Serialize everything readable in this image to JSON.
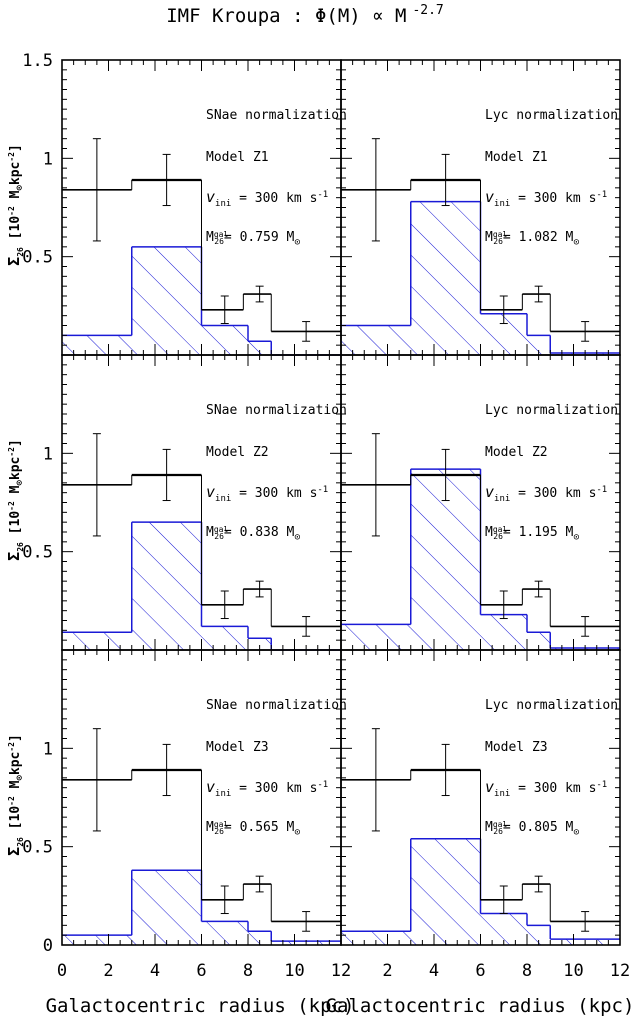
{
  "figure": {
    "title": "IMF Kroupa : Φ(M) ∝ M",
    "title_exp": "-2.7",
    "xlabel": "Galactocentric radius (kpc)",
    "ylabel_main": "Σ",
    "ylabel_sub": "26",
    "ylabel_units": "[10",
    "ylabel_units_exp": "-2",
    "ylabel_units_rest": "M",
    "ylabel_units_sun": "⊙",
    "ylabel_units_tail": "kpc",
    "ylabel_units_tail_exp": "-2",
    "ylabel_units_close": "]",
    "x_ticks": [
      "0",
      "2",
      "4",
      "6",
      "8",
      "10",
      "12"
    ],
    "y_ticks_top": [
      "1.5",
      "1",
      "0.5"
    ],
    "y_ticks_mid": [
      "1",
      "0.5"
    ],
    "y_ticks_bottom": [
      "1",
      "0.5",
      "0"
    ],
    "colors": {
      "model": "#1a1ad6",
      "observed": "#000000"
    }
  },
  "chart_data": [
    {
      "type": "bar",
      "panel": "top-left",
      "normalization": "SNae normalization",
      "model": "Model Z1",
      "vini_label": "v",
      "vini_sub": "ini",
      "vini_value": "= 300 km s",
      "vini_exp": "-1",
      "mgal_label": "M",
      "mgal_sup": "gal",
      "mgal_sub": "26",
      "mgal_value": "= 0.759 M",
      "mgal_sun": "⊙",
      "xlim": [
        0,
        12
      ],
      "ylim": [
        0,
        1.5
      ],
      "observed_bins": [
        [
          0,
          3,
          0.84
        ],
        [
          3,
          6,
          0.89
        ],
        [
          6,
          7.8,
          0.23
        ],
        [
          7.8,
          9,
          0.31
        ],
        [
          9,
          12,
          0.12
        ]
      ],
      "observed_err": [
        [
          1.5,
          0.84,
          0.26
        ],
        [
          4.5,
          0.89,
          0.13
        ],
        [
          7,
          0.23,
          0.07
        ],
        [
          8.5,
          0.31,
          0.04
        ],
        [
          10.5,
          0.12,
          0.05
        ]
      ],
      "model_bins": [
        [
          0,
          3,
          0.1
        ],
        [
          3,
          6,
          0.55
        ],
        [
          6,
          8,
          0.15
        ],
        [
          8,
          9,
          0.07
        ],
        [
          9,
          12,
          0.0
        ]
      ]
    },
    {
      "type": "bar",
      "panel": "top-right",
      "normalization": "Lyc normalization",
      "model": "Model Z1",
      "vini_label": "v",
      "vini_sub": "ini",
      "vini_value": "= 300 km s",
      "vini_exp": "-1",
      "mgal_label": "M",
      "mgal_sup": "gal",
      "mgal_sub": "26",
      "mgal_value": "= 1.082 M",
      "mgal_sun": "⊙",
      "xlim": [
        0,
        12
      ],
      "ylim": [
        0,
        1.5
      ],
      "observed_bins": [
        [
          0,
          3,
          0.84
        ],
        [
          3,
          6,
          0.89
        ],
        [
          6,
          7.8,
          0.23
        ],
        [
          7.8,
          9,
          0.31
        ],
        [
          9,
          12,
          0.12
        ]
      ],
      "observed_err": [
        [
          1.5,
          0.84,
          0.26
        ],
        [
          4.5,
          0.89,
          0.13
        ],
        [
          7,
          0.23,
          0.07
        ],
        [
          8.5,
          0.31,
          0.04
        ],
        [
          10.5,
          0.12,
          0.05
        ]
      ],
      "model_bins": [
        [
          0,
          3,
          0.15
        ],
        [
          3,
          6,
          0.78
        ],
        [
          6,
          8,
          0.21
        ],
        [
          8,
          9,
          0.1
        ],
        [
          9,
          12,
          0.01
        ]
      ]
    },
    {
      "type": "bar",
      "panel": "middle-left",
      "normalization": "SNae normalization",
      "model": "Model Z2",
      "vini_label": "v",
      "vini_sub": "ini",
      "vini_value": "= 300 km s",
      "vini_exp": "-1",
      "mgal_label": "M",
      "mgal_sup": "gal",
      "mgal_sub": "26",
      "mgal_value": "= 0.838 M",
      "mgal_sun": "⊙",
      "xlim": [
        0,
        12
      ],
      "ylim": [
        0,
        1.5
      ],
      "observed_bins": [
        [
          0,
          3,
          0.84
        ],
        [
          3,
          6,
          0.89
        ],
        [
          6,
          7.8,
          0.23
        ],
        [
          7.8,
          9,
          0.31
        ],
        [
          9,
          12,
          0.12
        ]
      ],
      "observed_err": [
        [
          1.5,
          0.84,
          0.26
        ],
        [
          4.5,
          0.89,
          0.13
        ],
        [
          7,
          0.23,
          0.07
        ],
        [
          8.5,
          0.31,
          0.04
        ],
        [
          10.5,
          0.12,
          0.05
        ]
      ],
      "model_bins": [
        [
          0,
          3,
          0.09
        ],
        [
          3,
          6,
          0.65
        ],
        [
          6,
          8,
          0.12
        ],
        [
          8,
          9,
          0.06
        ],
        [
          9,
          12,
          0.0
        ]
      ]
    },
    {
      "type": "bar",
      "panel": "middle-right",
      "normalization": "Lyc normalization",
      "model": "Model Z2",
      "vini_label": "v",
      "vini_sub": "ini",
      "vini_value": "= 300 km s",
      "vini_exp": "-1",
      "mgal_label": "M",
      "mgal_sup": "gal",
      "mgal_sub": "26",
      "mgal_value": "= 1.195 M",
      "mgal_sun": "⊙",
      "xlim": [
        0,
        12
      ],
      "ylim": [
        0,
        1.5
      ],
      "observed_bins": [
        [
          0,
          3,
          0.84
        ],
        [
          3,
          6,
          0.89
        ],
        [
          6,
          7.8,
          0.23
        ],
        [
          7.8,
          9,
          0.31
        ],
        [
          9,
          12,
          0.12
        ]
      ],
      "observed_err": [
        [
          1.5,
          0.84,
          0.26
        ],
        [
          4.5,
          0.89,
          0.13
        ],
        [
          7,
          0.23,
          0.07
        ],
        [
          8.5,
          0.31,
          0.04
        ],
        [
          10.5,
          0.12,
          0.05
        ]
      ],
      "model_bins": [
        [
          0,
          3,
          0.13
        ],
        [
          3,
          6,
          0.92
        ],
        [
          6,
          8,
          0.18
        ],
        [
          8,
          9,
          0.09
        ],
        [
          9,
          12,
          0.01
        ]
      ]
    },
    {
      "type": "bar",
      "panel": "bottom-left",
      "normalization": "SNae normalization",
      "model": "Model Z3",
      "vini_label": "v",
      "vini_sub": "ini",
      "vini_value": "= 300 km s",
      "vini_exp": "-1",
      "mgal_label": "M",
      "mgal_sup": "gal",
      "mgal_sub": "26",
      "mgal_value": "= 0.565 M",
      "mgal_sun": "⊙",
      "xlim": [
        0,
        12
      ],
      "ylim": [
        0,
        1.5
      ],
      "observed_bins": [
        [
          0,
          3,
          0.84
        ],
        [
          3,
          6,
          0.89
        ],
        [
          6,
          7.8,
          0.23
        ],
        [
          7.8,
          9,
          0.31
        ],
        [
          9,
          12,
          0.12
        ]
      ],
      "observed_err": [
        [
          1.5,
          0.84,
          0.26
        ],
        [
          4.5,
          0.89,
          0.13
        ],
        [
          7,
          0.23,
          0.07
        ],
        [
          8.5,
          0.31,
          0.04
        ],
        [
          10.5,
          0.12,
          0.05
        ]
      ],
      "model_bins": [
        [
          0,
          3,
          0.05
        ],
        [
          3,
          6,
          0.38
        ],
        [
          6,
          8,
          0.12
        ],
        [
          8,
          9,
          0.07
        ],
        [
          9,
          12,
          0.02
        ]
      ]
    },
    {
      "type": "bar",
      "panel": "bottom-right",
      "normalization": "Lyc normalization",
      "model": "Model Z3",
      "vini_label": "v",
      "vini_sub": "ini",
      "vini_value": "= 300 km s",
      "vini_exp": "-1",
      "mgal_label": "M",
      "mgal_sup": "gal",
      "mgal_sub": "26",
      "mgal_value": "= 0.805 M",
      "mgal_sun": "⊙",
      "xlim": [
        0,
        12
      ],
      "ylim": [
        0,
        1.5
      ],
      "observed_bins": [
        [
          0,
          3,
          0.84
        ],
        [
          3,
          6,
          0.89
        ],
        [
          6,
          7.8,
          0.23
        ],
        [
          7.8,
          9,
          0.31
        ],
        [
          9,
          12,
          0.12
        ]
      ],
      "observed_err": [
        [
          1.5,
          0.84,
          0.26
        ],
        [
          4.5,
          0.89,
          0.13
        ],
        [
          7,
          0.23,
          0.07
        ],
        [
          8.5,
          0.31,
          0.04
        ],
        [
          10.5,
          0.12,
          0.05
        ]
      ],
      "model_bins": [
        [
          0,
          3,
          0.07
        ],
        [
          3,
          6,
          0.54
        ],
        [
          6,
          8,
          0.16
        ],
        [
          8,
          9,
          0.1
        ],
        [
          9,
          12,
          0.03
        ]
      ]
    }
  ]
}
